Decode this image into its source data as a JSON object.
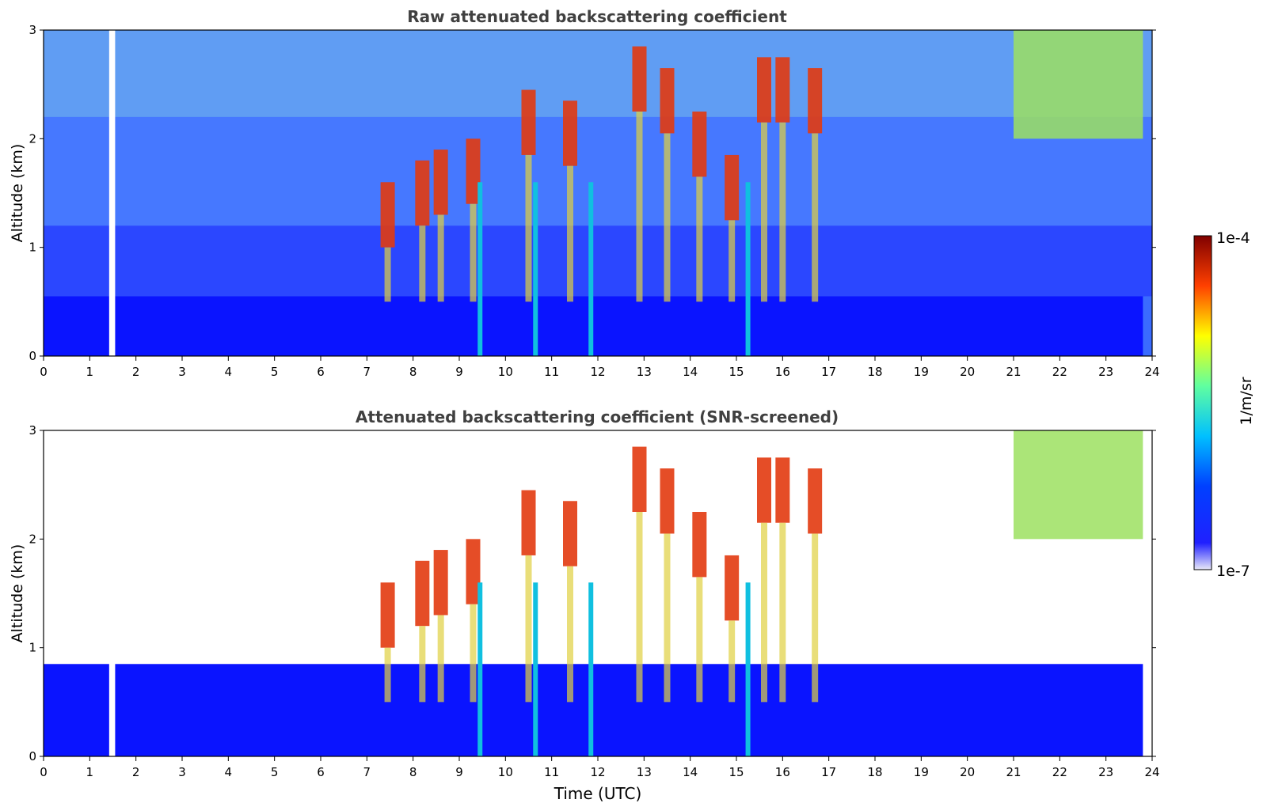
{
  "chart_data": [
    {
      "type": "heatmap",
      "title": "Raw attenuated backscattering coefficient",
      "xlabel": "",
      "ylabel": "Altitude (km)",
      "xlim": [
        0,
        24
      ],
      "ylim": [
        0,
        3
      ],
      "xticks": [
        "0",
        "1",
        "2",
        "3",
        "4",
        "5",
        "6",
        "7",
        "8",
        "9",
        "10",
        "11",
        "12",
        "13",
        "14",
        "15",
        "16",
        "17",
        "18",
        "19",
        "20",
        "21",
        "22",
        "23",
        "24"
      ],
      "yticks": [
        "0",
        "1",
        "2",
        "3"
      ],
      "data_gap_utc": [
        1.42,
        1.55
      ],
      "features": [
        {
          "kind": "boundary-layer",
          "t0": 0,
          "t1": 23.8,
          "top_km": 0.55,
          "level": "low"
        },
        {
          "kind": "cloud",
          "t_km": [
            [
              7.45,
              1.35
            ],
            [
              8.2,
              1.55
            ],
            [
              8.6,
              1.65
            ],
            [
              9.3,
              1.75
            ],
            [
              10.5,
              2.2
            ],
            [
              11.4,
              2.1
            ],
            [
              12.9,
              2.6
            ],
            [
              13.5,
              2.4
            ],
            [
              14.2,
              2.0
            ],
            [
              14.9,
              1.6
            ],
            [
              15.6,
              2.5
            ],
            [
              16.0,
              2.5
            ],
            [
              16.7,
              2.4
            ]
          ],
          "level": "high"
        },
        {
          "kind": "precip-streak",
          "t_utc": [
            9.45,
            10.65,
            11.85,
            15.25
          ],
          "level": "mid"
        },
        {
          "kind": "cirrus",
          "t0": 21.0,
          "t1": 23.8,
          "base_km": 2.0,
          "top_km": 3.0,
          "level": "mid-high"
        }
      ]
    },
    {
      "type": "heatmap",
      "title": "Attenuated backscattering coefficient (SNR-screened)",
      "xlabel": "Time (UTC)",
      "ylabel": "Altitude (km)",
      "xlim": [
        0,
        24
      ],
      "ylim": [
        0,
        3
      ],
      "xticks": [
        "0",
        "1",
        "2",
        "3",
        "4",
        "5",
        "6",
        "7",
        "8",
        "9",
        "10",
        "11",
        "12",
        "13",
        "14",
        "15",
        "16",
        "17",
        "18",
        "19",
        "20",
        "21",
        "22",
        "23",
        "24"
      ],
      "yticks": [
        "0",
        "1",
        "2",
        "3"
      ],
      "data_gap_utc": [
        1.42,
        1.55
      ],
      "features": [
        {
          "kind": "boundary-layer",
          "t0": 0,
          "t1": 23.8,
          "top_km": 0.85,
          "level": "low"
        },
        {
          "kind": "cloud",
          "t_km": [
            [
              7.45,
              1.35
            ],
            [
              8.2,
              1.55
            ],
            [
              8.6,
              1.65
            ],
            [
              9.3,
              1.75
            ],
            [
              10.5,
              2.2
            ],
            [
              11.4,
              2.1
            ],
            [
              12.9,
              2.6
            ],
            [
              13.5,
              2.4
            ],
            [
              14.2,
              2.0
            ],
            [
              14.9,
              1.6
            ],
            [
              15.6,
              2.5
            ],
            [
              16.0,
              2.5
            ],
            [
              16.7,
              2.4
            ]
          ],
          "level": "high"
        },
        {
          "kind": "precip-streak",
          "t_utc": [
            9.45,
            10.65,
            11.85,
            15.25
          ],
          "level": "mid"
        },
        {
          "kind": "cirrus",
          "t0": 21.0,
          "t1": 23.8,
          "base_km": 2.0,
          "top_km": 3.0,
          "level": "mid-high"
        }
      ]
    }
  ],
  "colorbar": {
    "label": "1/m/sr",
    "max_label": "1e-4",
    "min_label": "1e-7",
    "colormap": "jet",
    "colors": [
      "#e8e8f8",
      "#0000ff",
      "#00bfff",
      "#7fff7f",
      "#ffff00",
      "#ff4000",
      "#800000"
    ]
  }
}
